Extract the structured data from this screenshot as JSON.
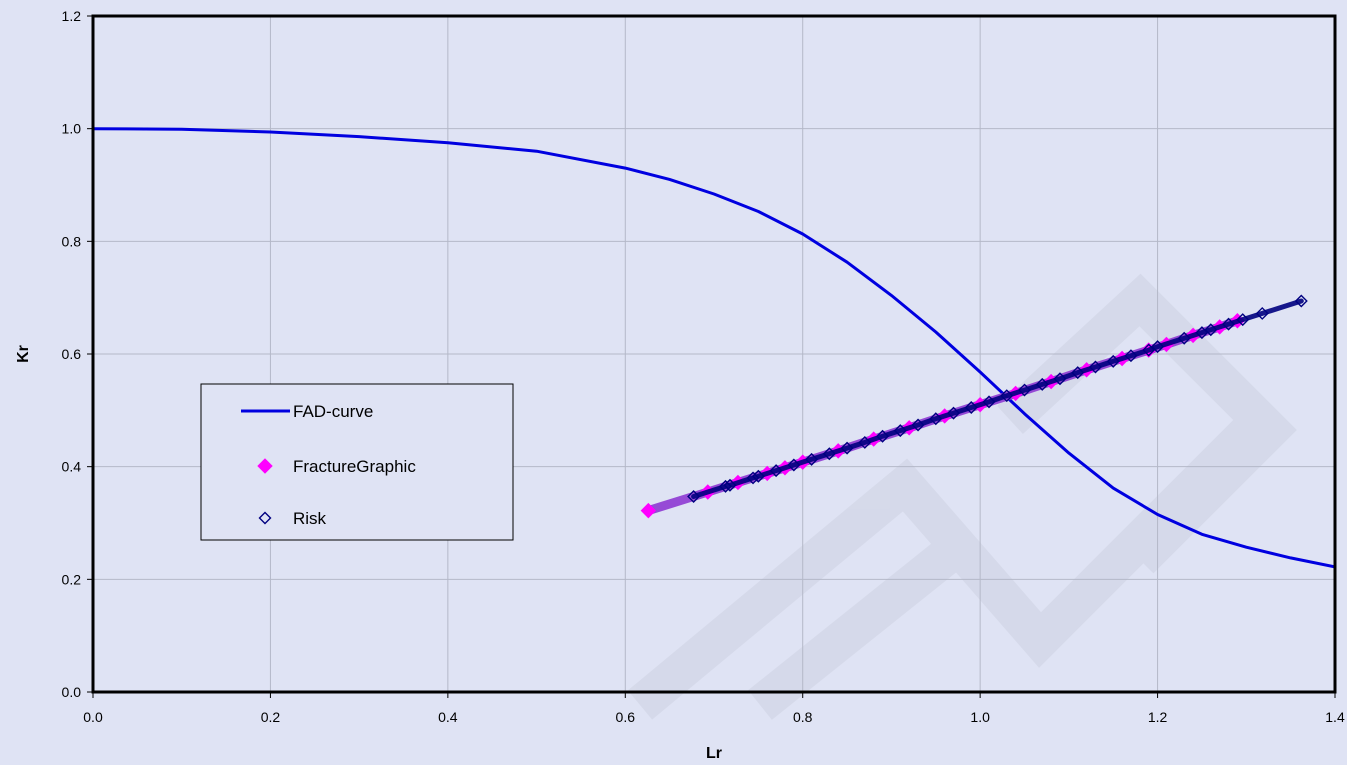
{
  "chart_data": {
    "type": "scatter",
    "xlabel": "Lr",
    "ylabel": "Kr",
    "xlim": [
      0,
      1.4
    ],
    "ylim": [
      0,
      1.2
    ],
    "x_ticks": [
      "0.0",
      "0.2",
      "0.4",
      "0.6",
      "0.8",
      "1.0",
      "1.2",
      "1.4"
    ],
    "y_ticks": [
      "0.0",
      "0.2",
      "0.4",
      "0.6",
      "0.8",
      "1.0",
      "1.2"
    ],
    "grid": true,
    "legend_position": "left",
    "series": [
      {
        "name": "FAD-curve",
        "kind": "line",
        "color": "#0000e0",
        "x": [
          0.0,
          0.1,
          0.2,
          0.3,
          0.4,
          0.5,
          0.6,
          0.65,
          0.7,
          0.75,
          0.8,
          0.85,
          0.9,
          0.95,
          1.0,
          1.05,
          1.1,
          1.15,
          1.2,
          1.25,
          1.3,
          1.35,
          1.4
        ],
        "y": [
          1.0,
          0.999,
          0.994,
          0.986,
          0.975,
          0.96,
          0.93,
          0.91,
          0.884,
          0.853,
          0.813,
          0.763,
          0.704,
          0.639,
          0.568,
          0.494,
          0.424,
          0.362,
          0.315,
          0.28,
          0.257,
          0.238,
          0.222
        ]
      },
      {
        "name": "FractureGraphic",
        "kind": "scatter",
        "marker": "diamond-filled",
        "color": "#ff00ff",
        "x": [
          0.626,
          0.693,
          0.727,
          0.76,
          0.78,
          0.8,
          0.84,
          0.88,
          0.92,
          0.96,
          1.0,
          1.04,
          1.08,
          1.12,
          1.16,
          1.19,
          1.21,
          1.24,
          1.27,
          1.29
        ],
        "y": [
          0.322,
          0.355,
          0.372,
          0.388,
          0.398,
          0.408,
          0.428,
          0.449,
          0.469,
          0.49,
          0.51,
          0.53,
          0.551,
          0.572,
          0.592,
          0.607,
          0.617,
          0.633,
          0.648,
          0.659
        ]
      },
      {
        "name": "Risk",
        "kind": "scatter",
        "marker": "diamond-open",
        "color": "#000080",
        "x": [
          0.677,
          0.713,
          0.718,
          0.744,
          0.75,
          0.77,
          0.79,
          0.81,
          0.83,
          0.85,
          0.87,
          0.89,
          0.91,
          0.93,
          0.95,
          0.97,
          0.99,
          1.01,
          1.03,
          1.05,
          1.07,
          1.09,
          1.11,
          1.13,
          1.15,
          1.17,
          1.19,
          1.2,
          1.23,
          1.25,
          1.26,
          1.28,
          1.296,
          1.318,
          1.362
        ],
        "y": [
          0.347,
          0.365,
          0.367,
          0.38,
          0.383,
          0.393,
          0.403,
          0.413,
          0.423,
          0.433,
          0.443,
          0.454,
          0.464,
          0.474,
          0.485,
          0.495,
          0.505,
          0.515,
          0.526,
          0.536,
          0.546,
          0.556,
          0.567,
          0.577,
          0.587,
          0.597,
          0.607,
          0.613,
          0.628,
          0.638,
          0.643,
          0.653,
          0.661,
          0.672,
          0.694
        ]
      }
    ]
  }
}
